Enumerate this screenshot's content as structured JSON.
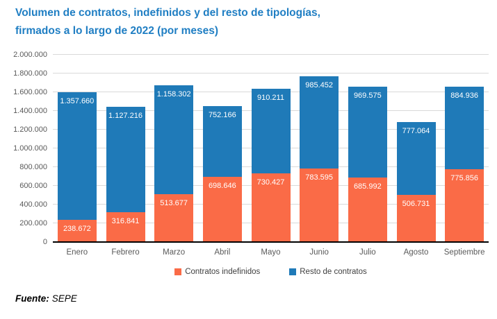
{
  "title": {
    "lines": [
      "Volumen de contratos, indefinidos y del resto de tipologías,",
      "firmados a lo largo de 2022 (por meses)"
    ],
    "color": "#1F7EC3"
  },
  "source": {
    "label": "Fuente:",
    "value": "SEPE"
  },
  "chart_data": {
    "type": "bar",
    "stacked": true,
    "title": "Volumen de contratos, indefinidos y del resto de tipologías, firmados a lo largo de 2022 (por meses)",
    "categories": [
      "Enero",
      "Febrero",
      "Marzo",
      "Abril",
      "Mayo",
      "Junio",
      "Julio",
      "Agosto",
      "Septiembre"
    ],
    "series": [
      {
        "name": "Contratos indefinidos",
        "color": "#FA6B47",
        "values": [
          238672,
          316841,
          513677,
          698646,
          730427,
          783595,
          685992,
          506731,
          775856
        ]
      },
      {
        "name": "Resto de contratos",
        "color": "#1F7AB8",
        "values": [
          1357660,
          1127216,
          1158302,
          752166,
          910211,
          985452,
          969575,
          777064,
          884936
        ]
      }
    ],
    "xlabel": "",
    "ylabel": "",
    "ylim": [
      0,
      2000000
    ],
    "ytick_step": 200000,
    "ytick_labels": [
      "0",
      "200.000",
      "400.000",
      "600.000",
      "800.000",
      "1.000.000",
      "1.200.000",
      "1.400.000",
      "1.600.000",
      "1.800.000",
      "2.000.000"
    ],
    "grid": true,
    "data_labels": true,
    "legend_position": "bottom"
  },
  "colors": {
    "gridline": "#D9D9D9",
    "axis_line": "#000000",
    "tick_label": "#595959",
    "month_label": "#595959",
    "legend_text": "#404040",
    "data_label": "#FFFFFF"
  }
}
